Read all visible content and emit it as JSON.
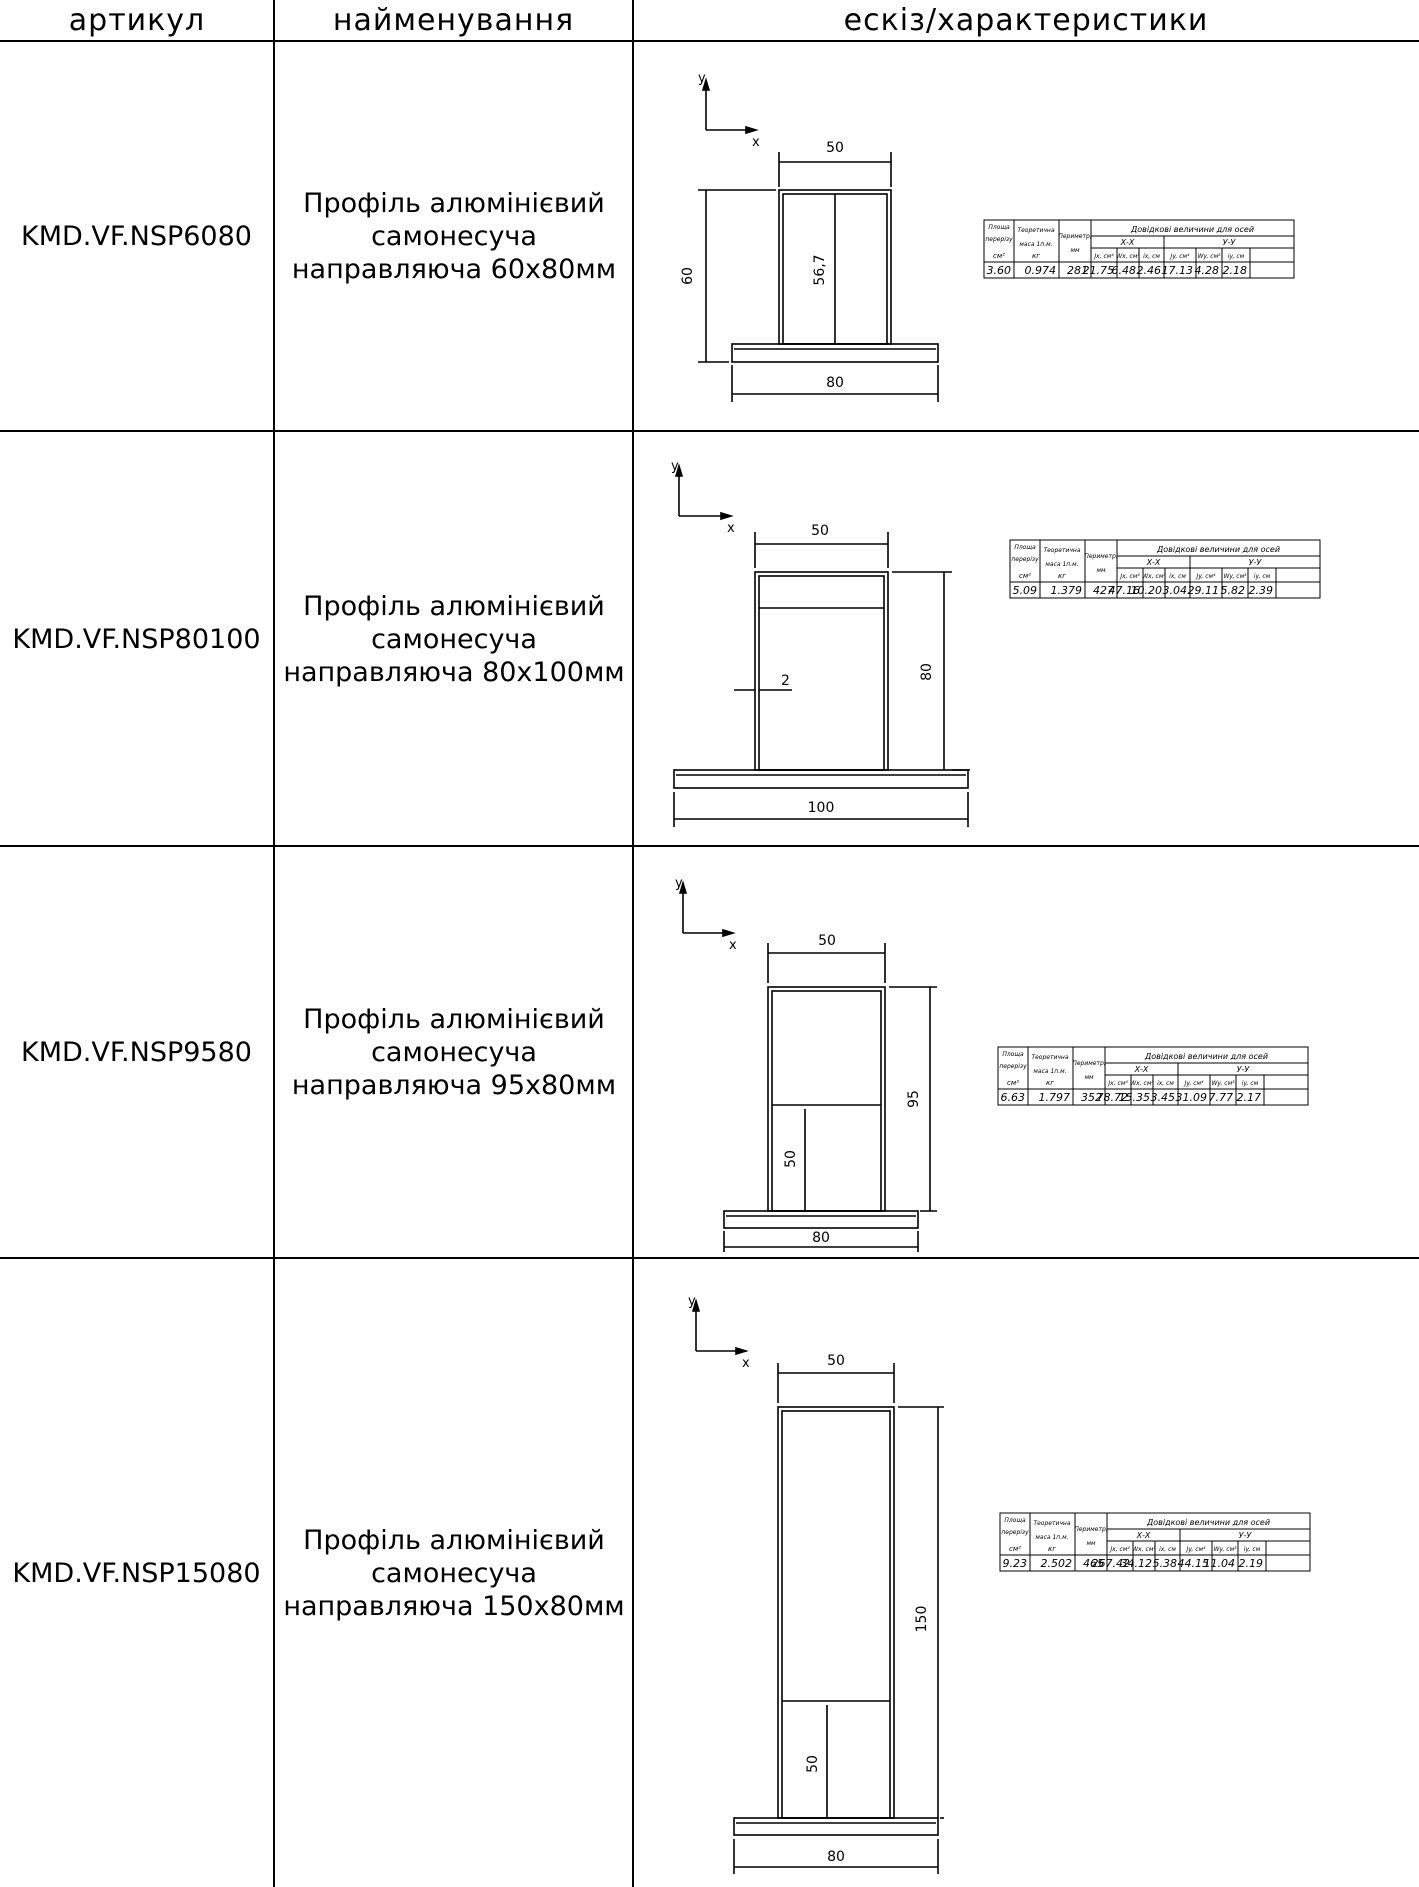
{
  "header": {
    "col_article": "артикул",
    "col_name": "найменування",
    "col_sketch": "ескіз/характеристики"
  },
  "spec_headers": {
    "area": [
      "Площа",
      "перерізу",
      "см²"
    ],
    "mass": [
      "Теоретична",
      "маса 1п.м.",
      "кг"
    ],
    "perimeter": [
      "Периметр,",
      "мм"
    ],
    "reference": "Довідкові величини для осей",
    "axis_x": "Х-Х",
    "axis_y": "У-У",
    "cols": [
      "Jx, см⁴",
      "Wx, см³",
      "ix, см",
      "Jy, см⁴",
      "Wy, см³",
      "iy, см"
    ]
  },
  "rows": [
    {
      "article": "KMD.VF.NSP6080",
      "name": [
        "Профіль алюмінієвий",
        "самонесуча",
        "направляюча 60х80мм"
      ],
      "dims": [
        "50",
        "60",
        "56,7",
        "80"
      ],
      "axis": [
        "y",
        "x"
      ],
      "values": [
        "3.60",
        "0.974",
        "281",
        "21.75",
        "6.48",
        "2.46",
        "17.13",
        "4.28",
        "2.18"
      ]
    },
    {
      "article": "KMD.VF.NSP80100",
      "name": [
        "Профіль алюмінієвий",
        "самонесуча",
        "направляюча 80х100мм"
      ],
      "dims": [
        "50",
        "80",
        "2",
        "100"
      ],
      "axis": [
        "y",
        "x"
      ],
      "values": [
        "5.09",
        "1.379",
        "427",
        "47.16",
        "10.20",
        "3.04",
        "29.11",
        "5.82",
        "2.39"
      ]
    },
    {
      "article": "KMD.VF.NSP9580",
      "name": [
        "Профіль алюмінієвий",
        "самонесуча",
        "направляюча 95х80мм"
      ],
      "dims": [
        "50",
        "95",
        "50",
        "80"
      ],
      "axis": [
        "y",
        "x"
      ],
      "values": [
        "6.63",
        "1.797",
        "352",
        "78.72",
        "15.35",
        "3.45",
        "31.09",
        "7.77",
        "2.17"
      ]
    },
    {
      "article": "KMD.VF.NSP15080",
      "name": [
        "Профіль алюмінієвий",
        "самонесуча",
        "направляюча 150х80мм"
      ],
      "dims": [
        "50",
        "150",
        "50",
        "80"
      ],
      "axis": [
        "y",
        "x"
      ],
      "values": [
        "9.23",
        "2.502",
        "465",
        "267.42",
        "34.12",
        "5.38",
        "44.15",
        "11.04",
        "2.19"
      ]
    }
  ]
}
